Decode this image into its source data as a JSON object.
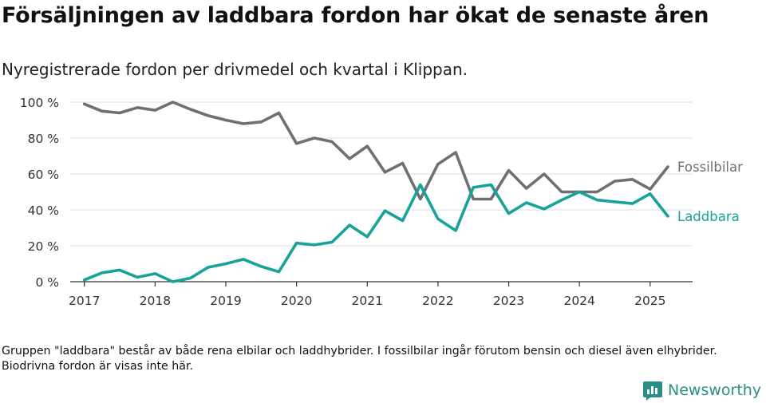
{
  "title": "Försäljningen av laddbara fordon har ökat de senaste åren",
  "subtitle": "Nyregistrerade fordon per drivmedel och kvartal i Klippan.",
  "footnote": "Gruppen \"laddbara\" består av både rena elbilar och laddhybrider. I fossilbilar ingår förutom bensin och diesel även elhybrider. Biodrivna fordon är visas inte här.",
  "brand": {
    "name": "Newsworthy",
    "icon": "newsworthy-bar-chart-logo-icon"
  },
  "colors": {
    "fossil": "#6f6f74",
    "laddbara": "#17a398",
    "brand": "#2a8f86",
    "grid": "#dddddd",
    "axis": "#333333"
  },
  "chart_data": {
    "type": "line",
    "ylim": [
      0,
      100
    ],
    "yticks": [
      0,
      20,
      40,
      60,
      80,
      100
    ],
    "ytick_labels": [
      "0 %",
      "20 %",
      "40 %",
      "60 %",
      "80 %",
      "100 %"
    ],
    "xlim": [
      2016.8,
      2025.6
    ],
    "xticks": [
      2017,
      2018,
      2019,
      2020,
      2021,
      2022,
      2023,
      2024,
      2025
    ],
    "xtick_labels": [
      "2017",
      "2018",
      "2019",
      "2020",
      "2021",
      "2022",
      "2023",
      "2024",
      "2025"
    ],
    "grid": true,
    "legend": "inline-right",
    "x": [
      "2017Q1",
      "2017Q2",
      "2017Q3",
      "2017Q4",
      "2018Q1",
      "2018Q2",
      "2018Q3",
      "2018Q4",
      "2019Q1",
      "2019Q2",
      "2019Q3",
      "2019Q4",
      "2020Q1",
      "2020Q2",
      "2020Q3",
      "2020Q4",
      "2021Q1",
      "2021Q2",
      "2021Q3",
      "2021Q4",
      "2022Q1",
      "2022Q2",
      "2022Q3",
      "2022Q4",
      "2023Q1",
      "2023Q2",
      "2023Q3",
      "2023Q4",
      "2024Q1",
      "2024Q2",
      "2024Q3",
      "2024Q4",
      "2025Q1",
      "2025Q2"
    ],
    "series": [
      {
        "name": "Fossilbilar",
        "values": [
          99,
          95,
          94,
          97,
          95.5,
          100,
          96,
          92.5,
          90,
          88,
          89,
          94,
          77,
          80,
          78,
          68.5,
          75.5,
          61,
          66,
          46,
          65.5,
          72,
          46,
          46,
          62,
          52,
          60,
          50,
          50,
          50,
          56,
          57,
          51.5,
          64
        ]
      },
      {
        "name": "Laddbara",
        "values": [
          1,
          5,
          6.5,
          2.5,
          4.5,
          0,
          2,
          8,
          10,
          12.5,
          8.5,
          5.5,
          21.5,
          20.5,
          22,
          31.5,
          25,
          39.5,
          34,
          54,
          35,
          28.5,
          52.5,
          54,
          38,
          44,
          40.5,
          45.5,
          50,
          45.5,
          44.5,
          43.5,
          49,
          36.5
        ]
      }
    ]
  }
}
